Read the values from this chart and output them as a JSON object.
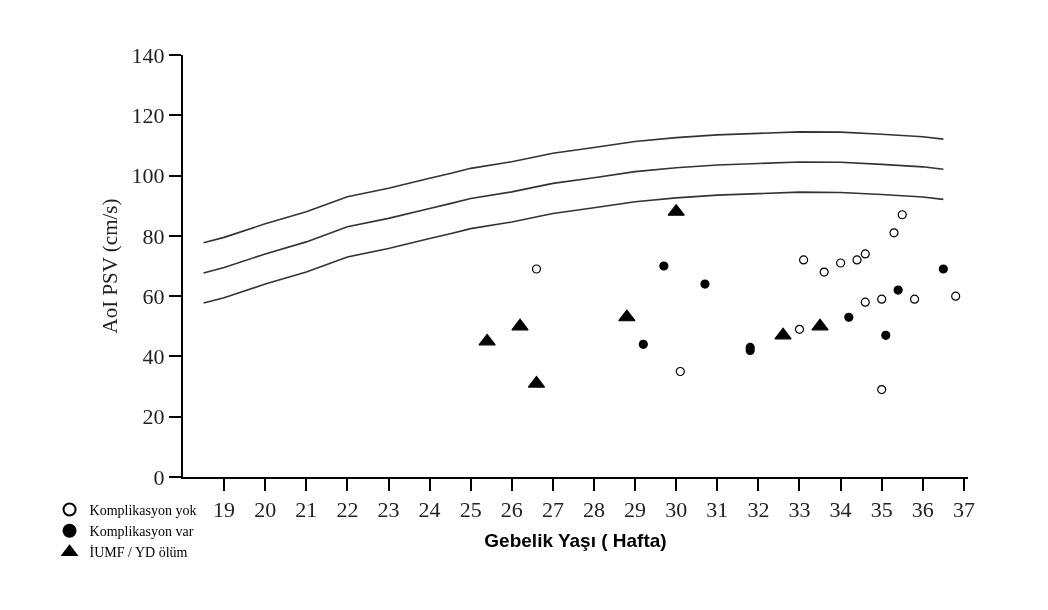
{
  "chart_data": {
    "type": "scatter",
    "xlabel": "Gebelik Yaşı ( Hafta)",
    "ylabel": "AoI PSV (cm/s)",
    "xlim": [
      18,
      37.1
    ],
    "xticks": [
      19,
      20,
      21,
      22,
      23,
      24,
      25,
      26,
      27,
      28,
      29,
      30,
      31,
      32,
      33,
      34,
      35,
      36,
      37
    ],
    "ylim": [
      0,
      140
    ],
    "yticks": [
      0,
      20,
      40,
      60,
      80,
      100,
      120,
      140
    ],
    "legend": "bottom left",
    "series": [
      {
        "type": "line",
        "color": "#333333",
        "marker": "none",
        "line_style": "solid",
        "x": [
          18.5,
          19,
          20,
          21,
          22,
          23,
          24,
          24.5,
          25,
          26,
          27,
          28,
          29,
          30,
          31,
          32,
          33,
          34,
          35,
          36,
          36.5
        ],
        "values": [
          77.7,
          79.5,
          84,
          88,
          93,
          95.8,
          99.1,
          100.7,
          102.4,
          104.6,
          107.4,
          109.3,
          111.3,
          112.6,
          113.5,
          114,
          114.5,
          114.4,
          113.7,
          112.9,
          112.1
        ]
      },
      {
        "type": "line",
        "color": "#333333",
        "marker": "none",
        "line_style": "solid",
        "x": [
          18.5,
          19,
          20,
          21,
          22,
          23,
          24,
          24.5,
          25,
          26,
          27,
          28,
          29,
          30,
          31,
          32,
          33,
          34,
          35,
          36,
          36.5
        ],
        "values": [
          67.7,
          69.5,
          74,
          78,
          83,
          85.8,
          89.1,
          90.7,
          92.4,
          94.6,
          97.4,
          99.3,
          101.3,
          102.6,
          103.5,
          104,
          104.5,
          104.4,
          103.7,
          102.9,
          102.1
        ]
      },
      {
        "type": "line",
        "color": "#333333",
        "marker": "none",
        "line_style": "solid",
        "x": [
          18.5,
          19,
          20,
          21,
          22,
          23,
          24,
          24.5,
          25,
          26,
          27,
          28,
          29,
          30,
          31,
          32,
          33,
          34,
          35,
          36,
          36.5
        ],
        "values": [
          57.7,
          59.5,
          64,
          68,
          73,
          75.8,
          79.1,
          80.7,
          82.4,
          84.6,
          87.4,
          89.3,
          91.3,
          92.6,
          93.5,
          94,
          94.5,
          94.4,
          93.7,
          92.9,
          92.1
        ]
      },
      {
        "name": "Komplikasyon yok",
        "color": "#ffffff",
        "marker": "circle",
        "x": [
          26.6,
          30.1,
          33.0,
          33.1,
          33.6,
          34.0,
          34.4,
          34.6,
          34.6,
          35.0,
          35.0,
          35.3,
          35.5,
          35.8,
          36.8
        ],
        "values": [
          69,
          35,
          49,
          72,
          68,
          71,
          72,
          74,
          58,
          29,
          59,
          81,
          87,
          59,
          60
        ]
      },
      {
        "name": "Komplikasyon var",
        "color": "#000000",
        "marker": "circle",
        "x": [
          29.2,
          29.7,
          30.7,
          31.8,
          31.8,
          34.2,
          35.1,
          35.4,
          36.5
        ],
        "values": [
          44,
          70,
          64,
          42,
          43,
          53,
          47,
          62,
          69
        ]
      },
      {
        "name": "İUMF / YD ölüm",
        "color": "#000000",
        "marker": "triangle",
        "x": [
          25.4,
          26.2,
          26.6,
          28.8,
          30.0,
          32.6,
          33.5
        ],
        "values": [
          45,
          50,
          31,
          53,
          88,
          47,
          50
        ]
      }
    ]
  }
}
